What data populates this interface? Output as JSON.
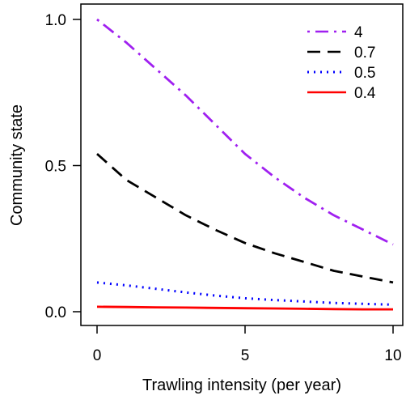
{
  "chart_data": {
    "type": "line",
    "title": "",
    "xlabel": "Trawling intensity (per year)",
    "ylabel": "Community state",
    "xlim": [
      0,
      10
    ],
    "ylim": [
      0,
      1
    ],
    "xticks": [
      "0",
      "5",
      "10"
    ],
    "yticks": [
      "0.0",
      "0.5",
      "1.0"
    ],
    "grid": false,
    "legend_position": "top-right",
    "series": [
      {
        "name": "4",
        "color": "#a020f0",
        "dash": "dot-dash",
        "x": [
          0,
          1,
          2,
          3,
          4,
          5,
          6,
          7,
          8,
          9,
          10
        ],
        "y": [
          1.0,
          0.92,
          0.83,
          0.74,
          0.64,
          0.54,
          0.46,
          0.39,
          0.33,
          0.28,
          0.23
        ]
      },
      {
        "name": "0.7",
        "color": "#000000",
        "dash": "long-dash",
        "x": [
          0,
          1,
          2,
          3,
          4,
          5,
          6,
          7,
          8,
          9,
          10
        ],
        "y": [
          0.54,
          0.45,
          0.39,
          0.33,
          0.28,
          0.235,
          0.2,
          0.17,
          0.14,
          0.12,
          0.1
        ]
      },
      {
        "name": "0.5",
        "color": "#0000ff",
        "dash": "dotted",
        "x": [
          0,
          1,
          2,
          3,
          4,
          5,
          6,
          7,
          8,
          9,
          10
        ],
        "y": [
          0.1,
          0.09,
          0.078,
          0.066,
          0.055,
          0.046,
          0.04,
          0.035,
          0.03,
          0.027,
          0.024
        ]
      },
      {
        "name": "0.4",
        "color": "#ff0000",
        "dash": "solid",
        "x": [
          0,
          1,
          2,
          3,
          4,
          5,
          6,
          7,
          8,
          9,
          10
        ],
        "y": [
          0.017,
          0.016,
          0.015,
          0.014,
          0.013,
          0.012,
          0.011,
          0.01,
          0.009,
          0.008,
          0.008
        ]
      }
    ]
  }
}
